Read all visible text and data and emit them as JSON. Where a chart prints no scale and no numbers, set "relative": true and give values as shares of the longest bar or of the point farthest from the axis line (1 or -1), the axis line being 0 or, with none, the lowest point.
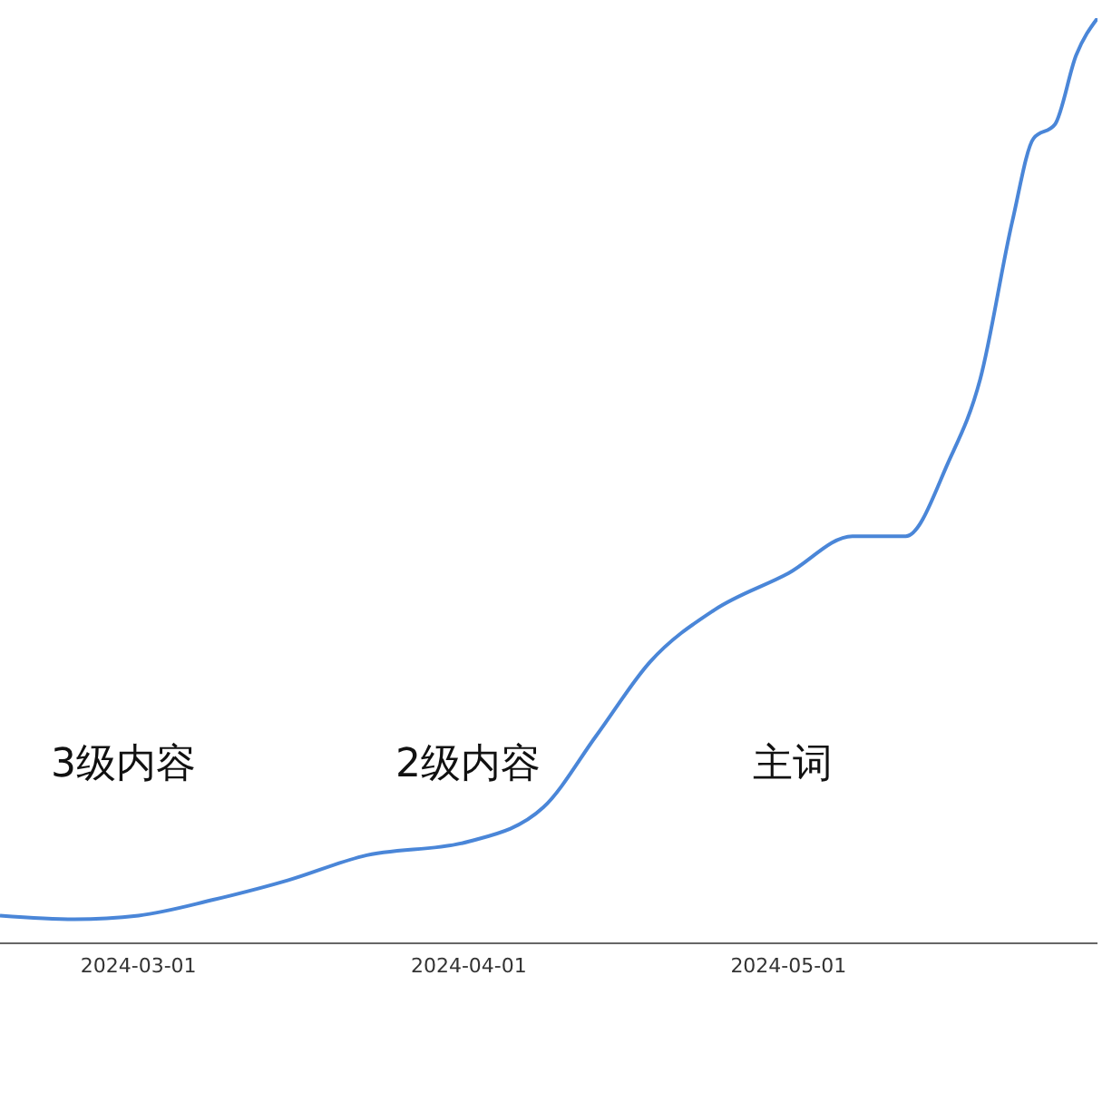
{
  "chart_data": {
    "type": "line",
    "relative": true,
    "x": [
      "2024-02-17",
      "2024-02-24",
      "2024-03-01",
      "2024-03-08",
      "2024-03-15",
      "2024-03-22",
      "2024-04-01",
      "2024-04-08",
      "2024-04-13",
      "2024-04-18",
      "2024-04-24",
      "2024-05-01",
      "2024-05-07",
      "2024-05-12",
      "2024-05-16",
      "2024-05-19",
      "2024-05-22",
      "2024-05-24",
      "2024-05-26",
      "2024-05-28",
      "2024-05-30"
    ],
    "series": [
      {
        "color": "#4a86d8",
        "values": [
          0.03,
          0.026,
          0.03,
          0.047,
          0.068,
          0.094,
          0.11,
          0.147,
          0.225,
          0.304,
          0.36,
          0.4,
          0.44,
          0.44,
          0.52,
          0.61,
          0.78,
          0.87,
          0.885,
          0.96,
          1.0
        ]
      }
    ],
    "xlim": [
      "2024-02-17",
      "2024-05-30"
    ],
    "xticks": [
      "2024-03-01",
      "2024-04-01",
      "2024-05-01"
    ],
    "annotations": [
      "3级内容",
      "2级内容",
      "主词"
    ],
    "grid": false,
    "legend": false,
    "tick_labels": "x",
    "marker": "none",
    "line_style": "solid"
  }
}
